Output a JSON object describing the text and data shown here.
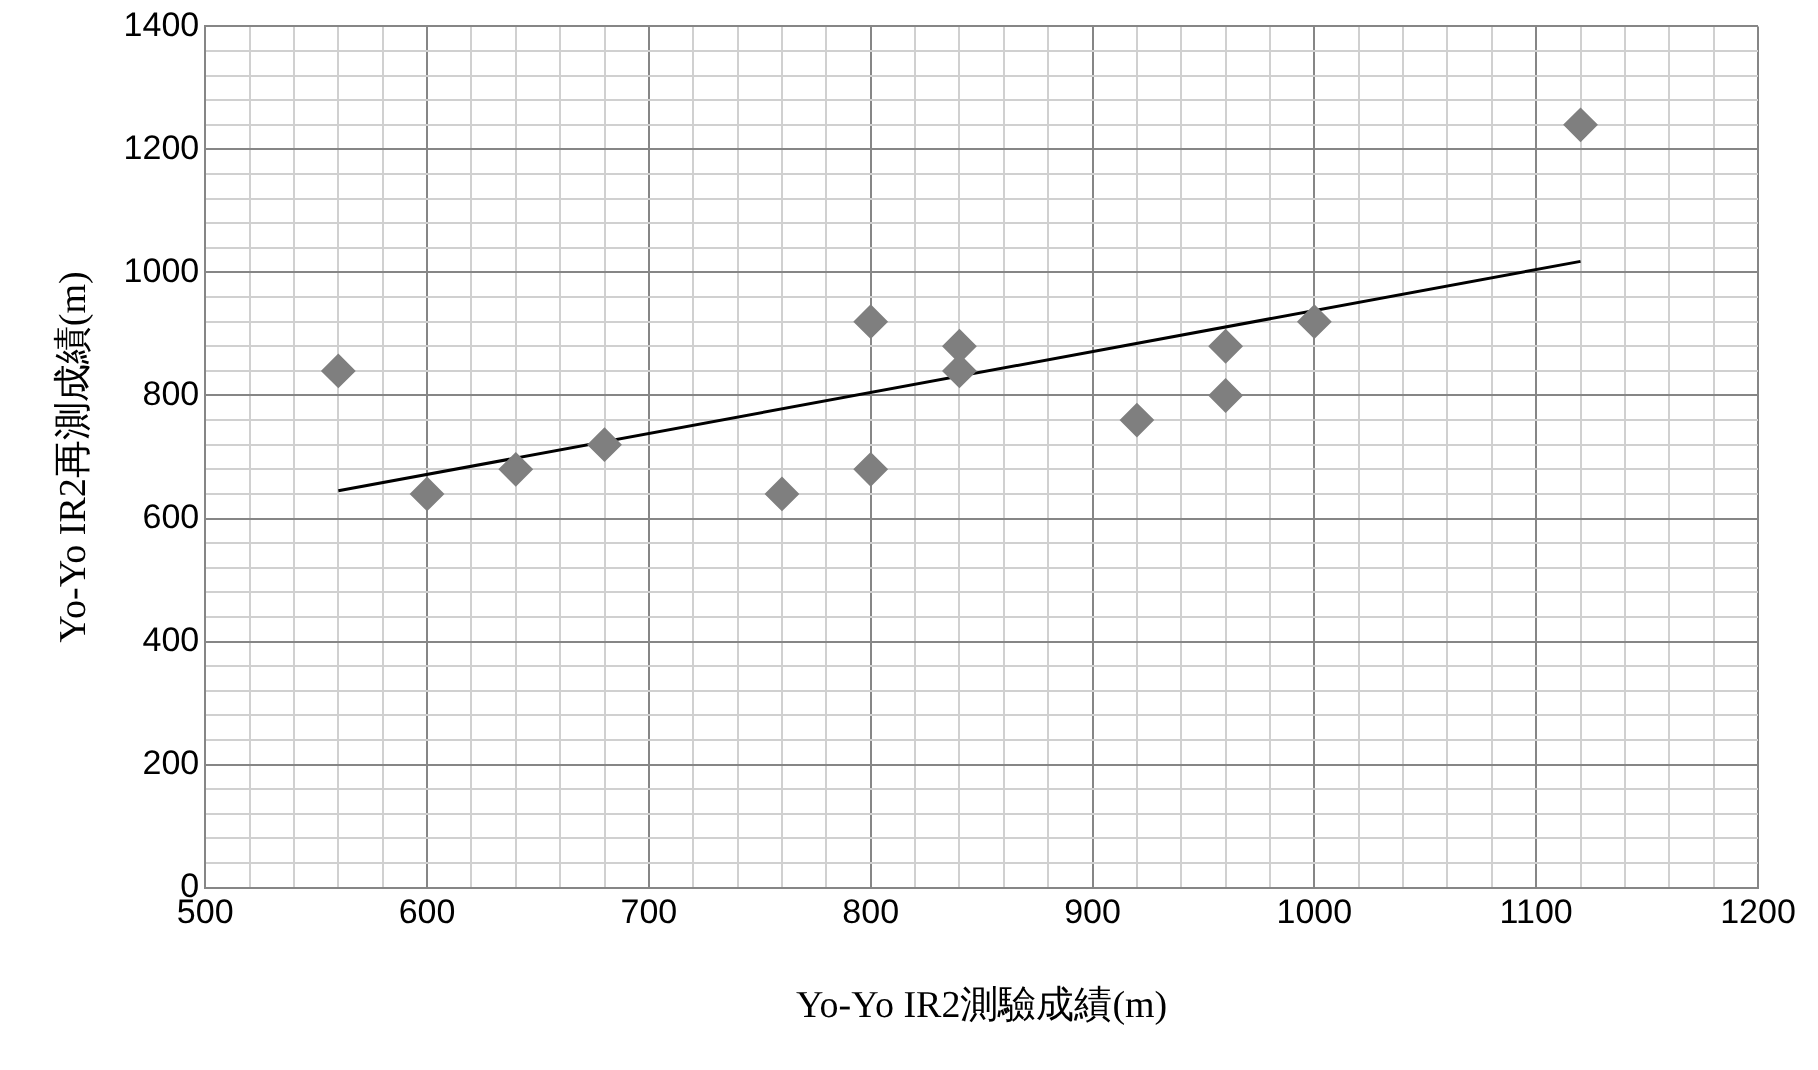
{
  "chart_data": {
    "type": "scatter",
    "xlabel": "Yo-Yo IR2測驗成績(m)",
    "ylabel": "Yo-Yo IR2再測成績(m)",
    "grid": true,
    "legend": false,
    "marker": "diamond",
    "xlim": [
      500,
      1200
    ],
    "ylim": [
      0,
      1400
    ],
    "xticks": [
      500,
      {
        "value": 520,
        "label": null
      },
      {
        "value": 540,
        "label": null
      },
      {
        "value": 560,
        "label": null
      },
      {
        "value": 580,
        "label": null
      },
      600,
      {
        "value": 620,
        "label": null
      },
      {
        "value": 640,
        "label": null
      },
      {
        "value": 660,
        "label": null
      },
      {
        "value": 680,
        "label": null
      },
      700,
      {
        "value": 720,
        "label": null
      },
      {
        "value": 740,
        "label": null
      },
      {
        "value": 760,
        "label": null
      },
      {
        "value": 780,
        "label": null
      },
      800,
      {
        "value": 820,
        "label": null
      },
      {
        "value": 840,
        "label": null
      },
      {
        "value": 860,
        "label": null
      },
      {
        "value": 880,
        "label": null
      },
      900,
      {
        "value": 920,
        "label": null
      },
      {
        "value": 940,
        "label": null
      },
      {
        "value": 960,
        "label": null
      },
      {
        "value": 980,
        "label": null
      },
      1000,
      {
        "value": 1020,
        "label": null
      },
      {
        "value": 1040,
        "label": null
      },
      {
        "value": 1060,
        "label": null
      },
      {
        "value": 1080,
        "label": null
      },
      1100,
      {
        "value": 1120,
        "label": null
      },
      {
        "value": 1140,
        "label": null
      },
      {
        "value": 1160,
        "label": null
      },
      {
        "value": 1180,
        "label": null
      },
      1200
    ],
    "yticks": [
      0,
      {
        "value": 40,
        "label": null
      },
      {
        "value": 80,
        "label": null
      },
      {
        "value": 120,
        "label": null
      },
      {
        "value": 160,
        "label": null
      },
      200,
      {
        "value": 240,
        "label": null
      },
      {
        "value": 280,
        "label": null
      },
      {
        "value": 320,
        "label": null
      },
      {
        "value": 360,
        "label": null
      },
      400,
      {
        "value": 440,
        "label": null
      },
      {
        "value": 480,
        "label": null
      },
      {
        "value": 520,
        "label": null
      },
      {
        "value": 560,
        "label": null
      },
      600,
      {
        "value": 640,
        "label": null
      },
      {
        "value": 680,
        "label": null
      },
      {
        "value": 720,
        "label": null
      },
      {
        "value": 760,
        "label": null
      },
      800,
      {
        "value": 840,
        "label": null
      },
      {
        "value": 880,
        "label": null
      },
      {
        "value": 920,
        "label": null
      },
      {
        "value": 960,
        "label": null
      },
      1000,
      {
        "value": 1040,
        "label": null
      },
      {
        "value": 1080,
        "label": null
      },
      {
        "value": 1120,
        "label": null
      },
      {
        "value": 1160,
        "label": null
      },
      1200,
      {
        "value": 1240,
        "label": null
      },
      {
        "value": 1280,
        "label": null
      },
      {
        "value": 1320,
        "label": null
      },
      {
        "value": 1360,
        "label": null
      },
      1400
    ],
    "series": [
      {
        "color": "#7f7f7f",
        "x": [
          560,
          600,
          640,
          680,
          760,
          800,
          800,
          840,
          840,
          920,
          960,
          960,
          1000,
          1120
        ],
        "values": [
          840,
          640,
          680,
          720,
          640,
          920,
          680,
          880,
          840,
          760,
          880,
          800,
          920,
          1240
        ]
      },
      {
        "type": "line",
        "color": "#000000",
        "marker": "none",
        "x": [
          560,
          1120
        ],
        "values": [
          645,
          1018
        ]
      }
    ]
  }
}
